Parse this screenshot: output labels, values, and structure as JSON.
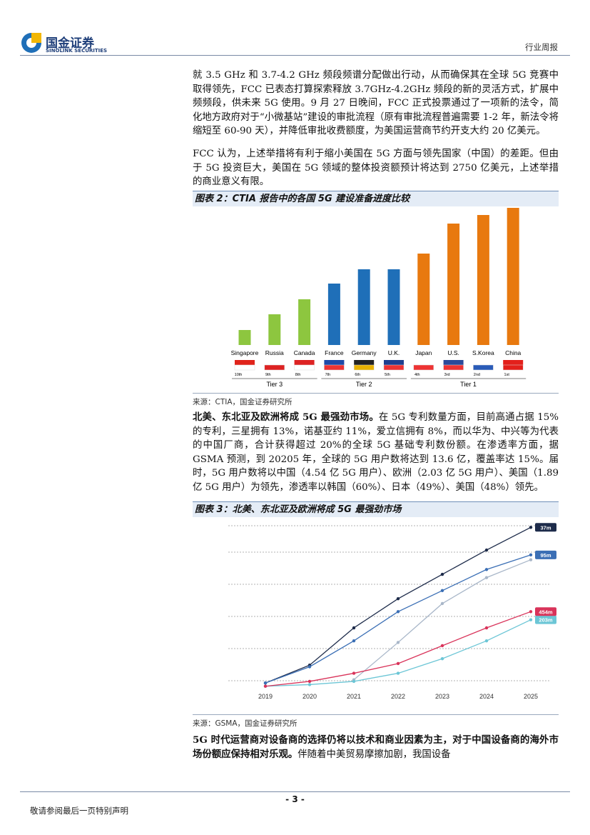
{
  "header": {
    "logo_cn": "国金证券",
    "logo_en": "SINOLINK SECURITIES",
    "report_type": "行业周报"
  },
  "paragraphs": [
    {
      "text": "就 3.5 GHz 和 3.7-4.2 GHz 频段频谱分配做出行动，从而确保其在全球 5G 竞赛中取得领先，FCC 已表态打算探索释放 3.7GHz-4.2GHz 频段的新的灵活方式，扩展中频频段，供未来 5G 使用。9 月 27 日晚间，FCC 正式投票通过了一项新的法令，简化地方政府对于“小微基站”建设的审批流程（原有审批流程普遍需要 1-2 年，新法令将缩短至 60-90 天），并降低审批收费额度，为美国运营商节约开支大约 20 亿美元。"
    },
    {
      "text": "FCC 认为，上述举措将有利于缩小美国在 5G 方面与领先国家（中国）的差距。但由于 5G 投资巨大，美国在 5G 领域的整体投资额预计将达到 2750 亿美元，上述举措的商业意义有限。"
    },
    {
      "lead": "北美、东北亚及欧洲将成 5G 最强劲市场。",
      "text": "在 5G 专利数量方面，目前高通占据 15%的专利，三星拥有 13%，诺基亚约 11%，爱立信拥有 8%，而以华为、中兴等为代表的中国厂商，合计获得超过 20%的全球 5G 基础专利数份额。在渗透率方面，据 GSMA 预测，到 20205 年，全球的 5G 用户数将达到 13.6 亿，覆盖率达 15%。届时，5G 用户数将以中国（4.54 亿 5G 用户）、欧洲（2.03 亿 5G 用户）、美国（1.89 亿 5G 用户）为领先，渗透率以韩国（60%）、日本（49%）、美国（48%）领先。"
    },
    {
      "lead": "5G 时代运营商对设备商的选择仍将以技术和商业因素为主，对于中国设备商的海外市场份额应保持相对乐观。",
      "text": "伴随着中美贸易摩擦加剧，我国设备"
    }
  ],
  "chart_data": [
    {
      "type": "bar",
      "title": "图表 2：CTIA 报告中的各国 5G 建设准备进度比较",
      "categories": [
        "Singapore",
        "Russia",
        "Canada",
        "France",
        "Germany",
        "U.K.",
        "Japan",
        "U.S.",
        "S.Korea",
        "China"
      ],
      "values": [
        21,
        43,
        64,
        86,
        106,
        106,
        128,
        170,
        182,
        192
      ],
      "colors": [
        "#8dc63f",
        "#8dc63f",
        "#8dc63f",
        "#1f6fb8",
        "#1f6fb8",
        "#1f6fb8",
        "#e8790f",
        "#e8790f",
        "#e8790f",
        "#e8790f"
      ],
      "rank_labels": [
        "10th",
        "9th",
        "8th",
        "7th",
        "6th",
        "5th",
        "4th",
        "3rd",
        "2nd",
        "1st"
      ],
      "tiers": [
        "Tier 3",
        "Tier 2",
        "Tier 1"
      ],
      "source": "来源：CTIA，国金证券研究所"
    },
    {
      "type": "line",
      "title": "图表 3：北美、东北亚及欧洲将成 5G 最强劲市场",
      "categories": [
        "2019",
        "2020",
        "2021",
        "2022",
        "2023",
        "2024",
        "2025"
      ],
      "ylim": [
        0,
        100
      ],
      "series": [
        {
          "color": "#1d2b4a",
          "values": [
            3,
            14,
            37,
            55,
            70,
            85,
            99
          ],
          "end_label": "37m"
        },
        {
          "color": "#3b6fb5",
          "values": [
            3,
            13,
            29,
            47,
            60,
            73,
            82
          ],
          "end_label": "95m"
        },
        {
          "color": "#a9b7c9",
          "values": [
            null,
            null,
            5,
            28,
            52,
            68,
            79
          ]
        },
        {
          "color": "#6cc6d6",
          "values": [
            1,
            2,
            4,
            9,
            18,
            29,
            42
          ],
          "end_label": "203m"
        },
        {
          "color": "#d9335a",
          "values": [
            1,
            4,
            9,
            15,
            26,
            37,
            47
          ],
          "end_label": "454m"
        }
      ],
      "source": "来源：GSMA，国金证券研究所"
    }
  ],
  "footer": {
    "page": "- 3 -",
    "disclaimer": "敬请参阅最后一页特别声明"
  }
}
